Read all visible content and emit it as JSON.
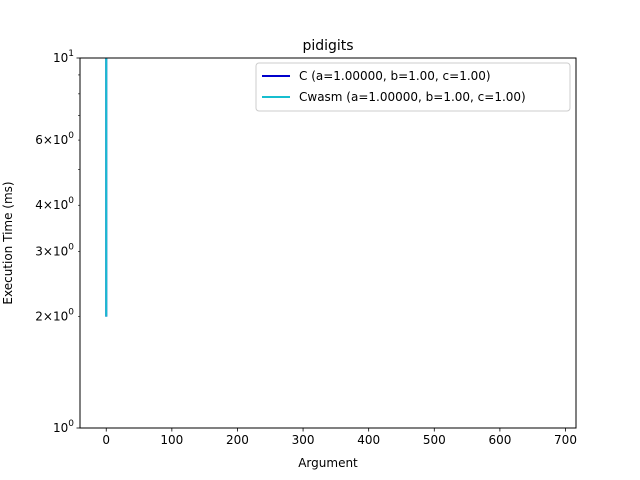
{
  "chart_data": {
    "type": "line",
    "title": "pidigits",
    "xlabel": "Argument",
    "ylabel": "Execution Time (ms)",
    "xlim": [
      -40,
      716
    ],
    "ylim": [
      1,
      10
    ],
    "yscale": "log",
    "x_ticks": [
      0,
      100,
      200,
      300,
      400,
      500,
      600,
      700
    ],
    "y_major_ticks": [
      {
        "value": 1,
        "base": "10",
        "exp": "0"
      },
      {
        "value": 10,
        "base": "10",
        "exp": "1"
      }
    ],
    "y_minor_ticks": [
      {
        "value": 2,
        "mant": "2",
        "base": "10",
        "exp": "0"
      },
      {
        "value": 3,
        "mant": "3",
        "base": "10",
        "exp": "0"
      },
      {
        "value": 4,
        "mant": "4",
        "base": "10",
        "exp": "0"
      },
      {
        "value": 5,
        "mant": "",
        "base": "",
        "exp": ""
      },
      {
        "value": 6,
        "mant": "6",
        "base": "10",
        "exp": "0"
      },
      {
        "value": 7,
        "mant": "",
        "base": "",
        "exp": ""
      },
      {
        "value": 8,
        "mant": "",
        "base": "",
        "exp": ""
      },
      {
        "value": 9,
        "mant": "",
        "base": "",
        "exp": ""
      }
    ],
    "times_symbol": "×",
    "legend_position": "upper right",
    "grid": false,
    "series": [
      {
        "name": "C (a=1.00000, b=1.00, c=1.00)",
        "color": "#0000cc",
        "x": [
          0,
          0
        ],
        "y": [
          2,
          10
        ]
      },
      {
        "name": "Cwasm (a=1.00000, b=1.00, c=1.00)",
        "color": "#17becf",
        "x": [
          0,
          0
        ],
        "y": [
          2,
          10
        ]
      }
    ]
  }
}
